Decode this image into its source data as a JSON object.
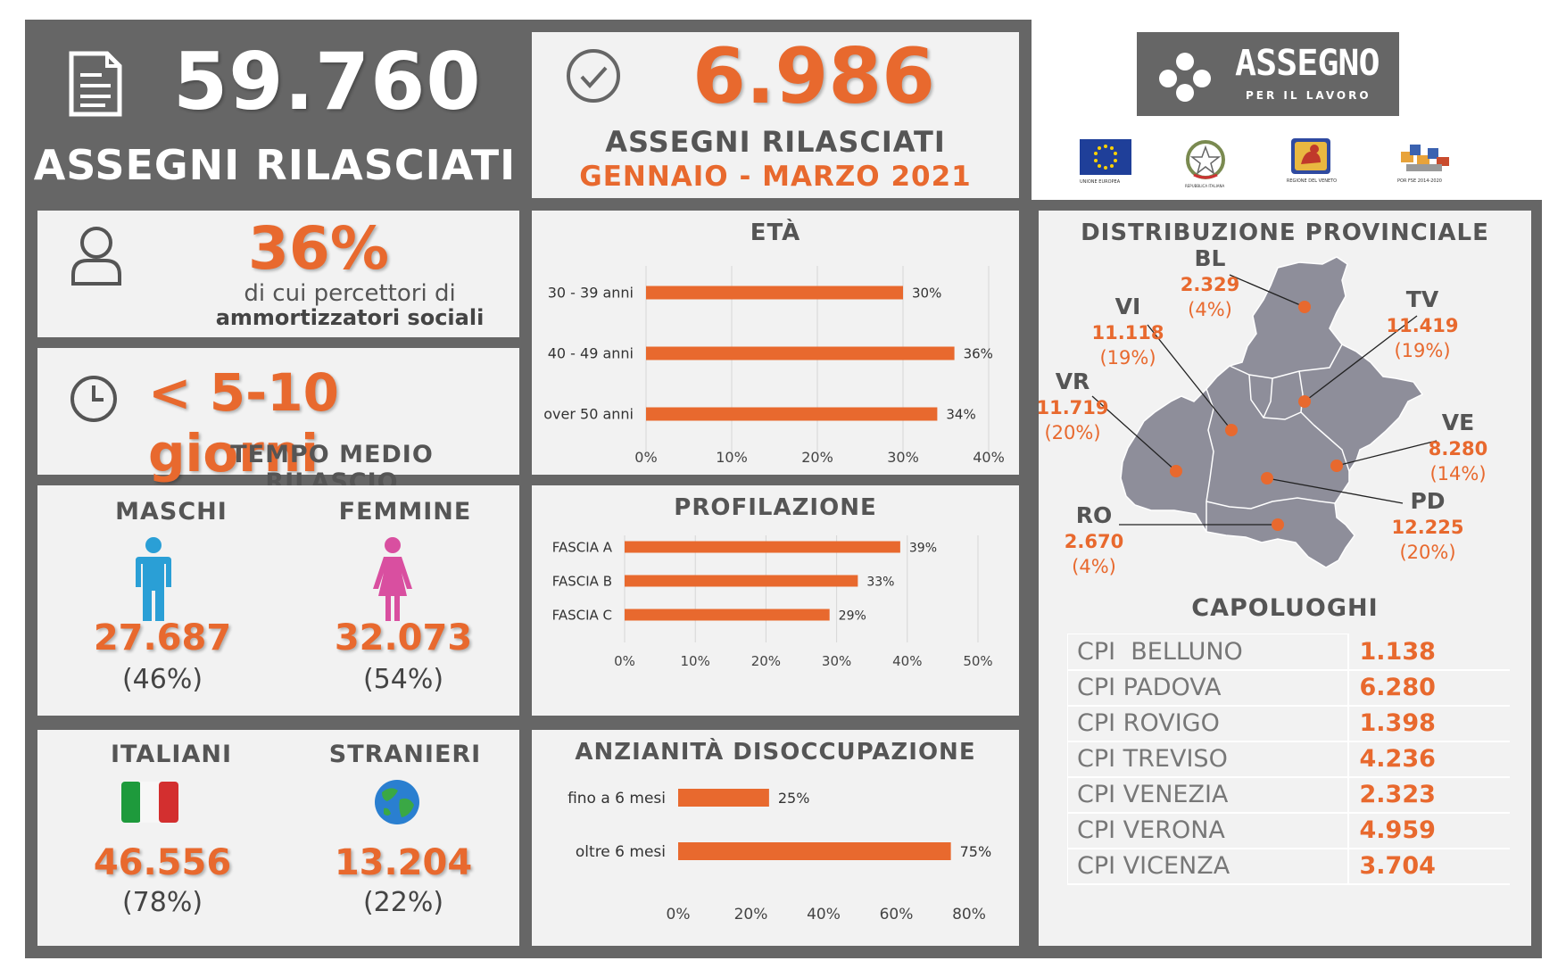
{
  "total": {
    "value": "59.760",
    "label": "ASSEGNI RILASCIATI"
  },
  "quarter": {
    "value": "6.986",
    "label": "ASSEGNI RILASCIATI",
    "period": "GENNAIO - MARZO 2021"
  },
  "logo": {
    "title": "ASSEGNO",
    "subtitle": "PER IL LAVORO"
  },
  "sponsors": [
    "UNIONE EUROPEA",
    "REPUBBLICA ITALIANA",
    "REGIONE DEL VENETO",
    "POR FSE 2014-2020"
  ],
  "ammortizzatori": {
    "value": "36%",
    "line1": "di cui percettori di",
    "line2": "ammortizzatori sociali"
  },
  "tempo": {
    "value": "< 5-10 giorni",
    "label": "TEMPO MEDIO RILASCIO"
  },
  "gender": {
    "male": {
      "label": "MASCHI",
      "value": "27.687",
      "pct": "(46%)"
    },
    "female": {
      "label": "FEMMINE",
      "value": "32.073",
      "pct": "(54%)"
    }
  },
  "origin": {
    "italian": {
      "label": "ITALIANI",
      "value": "46.556",
      "pct": "(78%)"
    },
    "foreign": {
      "label": "STRANIERI",
      "value": "13.204",
      "pct": "(22%)"
    }
  },
  "chart_data": [
    {
      "type": "bar",
      "orientation": "horizontal",
      "title": "ETÀ",
      "categories": [
        "30 - 39 anni",
        "40 - 49 anni",
        "over 50 anni"
      ],
      "values": [
        30,
        36,
        34
      ],
      "value_labels": [
        "30%",
        "36%",
        "34%"
      ],
      "xlim": [
        0,
        40
      ],
      "ticks": [
        "0%",
        "10%",
        "20%",
        "30%",
        "40%"
      ],
      "grid": true
    },
    {
      "type": "bar",
      "orientation": "horizontal",
      "title": "PROFILAZIONE",
      "categories": [
        "FASCIA A",
        "FASCIA B",
        "FASCIA C"
      ],
      "values": [
        39,
        33,
        29
      ],
      "value_labels": [
        "39%",
        "33%",
        "29%"
      ],
      "xlim": [
        0,
        50
      ],
      "ticks": [
        "0%",
        "10%",
        "20%",
        "30%",
        "40%",
        "50%"
      ],
      "grid": true
    },
    {
      "type": "bar",
      "orientation": "horizontal",
      "title": "ANZIANITÀ DISOCCUPAZIONE",
      "categories": [
        "fino a 6 mesi",
        "oltre 6 mesi"
      ],
      "values": [
        25,
        75
      ],
      "value_labels": [
        "25%",
        "75%"
      ],
      "xlim": [
        0,
        80
      ],
      "ticks": [
        "0%",
        "20%",
        "40%",
        "60%",
        "80%"
      ],
      "grid": false
    }
  ],
  "map": {
    "title": "DISTRIBUZIONE PROVINCIALE",
    "provinces": [
      {
        "code": "BL",
        "value": "2.329",
        "pct": "(4%)"
      },
      {
        "code": "TV",
        "value": "11.419",
        "pct": "(19%)"
      },
      {
        "code": "VI",
        "value": "11.118",
        "pct": "(19%)"
      },
      {
        "code": "VR",
        "value": "11.719",
        "pct": "(20%)"
      },
      {
        "code": "VE",
        "value": "8.280",
        "pct": "(14%)"
      },
      {
        "code": "PD",
        "value": "12.225",
        "pct": "(20%)"
      },
      {
        "code": "RO",
        "value": "2.670",
        "pct": "(4%)"
      }
    ]
  },
  "capoluoghi": {
    "title": "CAPOLUOGHI",
    "rows": [
      {
        "name": "CPI  BELLUNO",
        "value": "1.138"
      },
      {
        "name": "CPI PADOVA",
        "value": "6.280"
      },
      {
        "name": "CPI ROVIGO",
        "value": "1.398"
      },
      {
        "name": "CPI TREVISO",
        "value": "4.236"
      },
      {
        "name": "CPI VENEZIA",
        "value": "2.323"
      },
      {
        "name": "CPI VERONA",
        "value": "4.959"
      },
      {
        "name": "CPI VICENZA",
        "value": "3.704"
      }
    ]
  },
  "colors": {
    "accent": "#e8692e",
    "frame": "#666666",
    "card": "#f2f2f2",
    "map": "#8e8e9a",
    "male": "#2a9fd6",
    "female": "#d94fa0"
  }
}
